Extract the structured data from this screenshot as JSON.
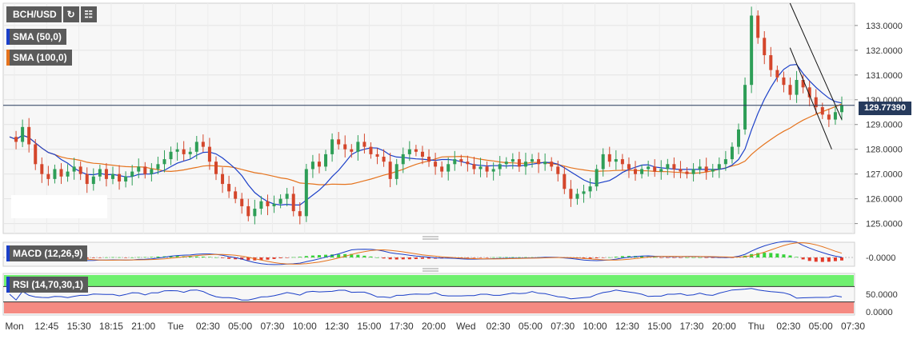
{
  "toolbar": {
    "symbol": "BCH/USD",
    "refresh_icon": "refresh-icon",
    "calendar_icon": "calendar-icon"
  },
  "indicators": {
    "sma50": {
      "label": "SMA (50,0)",
      "color": "#1b3fc8"
    },
    "sma100": {
      "label": "SMA (100,0)",
      "color": "#e5731d"
    },
    "macd": {
      "label": "MACD (12,26,9)",
      "value_label": "-0.0000"
    },
    "rsi": {
      "label": "RSI (14,70,30,1)",
      "tick_labels": [
        "50.0000",
        "0.0000"
      ],
      "overbought": 70,
      "oversold": 30
    }
  },
  "current_price": {
    "label": "129.77390",
    "value": 129.7739
  },
  "chart_data": {
    "type": "candlestick",
    "y_ticks": [
      "133.0000",
      "132.0000",
      "131.0000",
      "130.0000",
      "129.0000",
      "128.0000",
      "127.0000",
      "126.0000",
      "125.0000"
    ],
    "y_tick_values": [
      133,
      132,
      131,
      130,
      129,
      128,
      127,
      126,
      125
    ],
    "ylim": [
      124.6,
      133.9
    ],
    "x_ticks": [
      "Mon",
      "12:45",
      "15:30",
      "18:15",
      "21:00",
      "Tue",
      "02:30",
      "05:00",
      "07:30",
      "10:00",
      "12:30",
      "15:00",
      "17:30",
      "20:00",
      "Wed",
      "02:30",
      "05:00",
      "07:30",
      "10:00",
      "12:30",
      "15:00",
      "17:30",
      "20:00",
      "Thu",
      "02:30",
      "05:00",
      "07:30"
    ],
    "close_series": [
      128.5,
      128.3,
      128.9,
      128.2,
      127.4,
      127.0,
      126.8,
      127.2,
      126.9,
      127.1,
      127.3,
      127.0,
      126.6,
      126.9,
      127.2,
      126.8,
      127.0,
      126.7,
      126.9,
      127.1,
      127.3,
      127.0,
      127.2,
      127.4,
      127.6,
      127.9,
      128.0,
      127.8,
      127.9,
      128.3,
      128.1,
      127.5,
      127.0,
      126.6,
      126.3,
      126.0,
      125.7,
      125.3,
      125.6,
      125.9,
      125.7,
      125.8,
      126.0,
      126.2,
      125.5,
      125.3,
      127.2,
      127.5,
      127.3,
      127.8,
      128.4,
      128.2,
      128.0,
      127.9,
      128.3,
      128.1,
      127.8,
      127.7,
      127.5,
      126.8,
      127.4,
      127.8,
      128.0,
      127.9,
      127.7,
      127.5,
      127.3,
      127.1,
      127.4,
      127.6,
      127.5,
      127.4,
      127.2,
      127.3,
      127.1,
      127.2,
      127.4,
      127.5,
      127.6,
      127.3,
      127.5,
      127.6,
      127.4,
      127.5,
      127.3,
      127.0,
      126.4,
      126.0,
      126.2,
      126.3,
      126.5,
      127.2,
      127.8,
      127.5,
      127.6,
      127.4,
      127.2,
      127.0,
      127.2,
      127.3,
      127.1,
      127.2,
      127.4,
      127.2,
      127.1,
      127.0,
      127.2,
      127.3,
      127.1,
      127.2,
      127.4,
      127.6,
      128.1,
      128.8,
      130.6,
      133.4,
      132.5,
      131.8,
      131.2,
      130.9,
      130.6,
      130.2,
      130.8,
      130.5,
      130.1,
      129.7,
      129.4,
      129.2,
      129.5,
      129.77
    ],
    "annotations": {
      "channel_upper": [
        {
          "t": 0.9378,
          "v": 133.9
        },
        {
          "t": 1.0,
          "v": 129.2
        }
      ],
      "channel_lower": [
        {
          "t": 0.9378,
          "v": 132.1
        },
        {
          "t": 0.9879,
          "v": 128.0
        }
      ]
    }
  }
}
